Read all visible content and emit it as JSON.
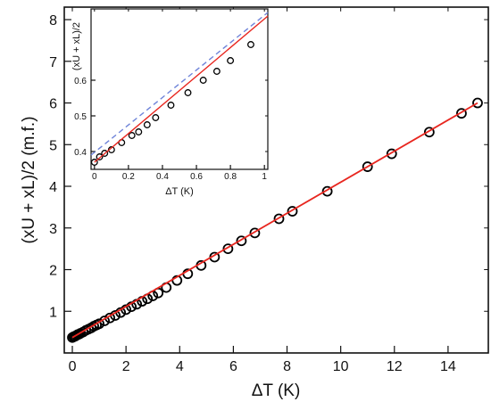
{
  "chart_data": [
    {
      "type": "scatter",
      "panel": "main",
      "xlabel": "ΔT  (K)",
      "ylabel": "(xU + xL)/2  (m.f.)",
      "xlim": [
        -0.3,
        15.5
      ],
      "ylim": [
        0,
        8.3
      ],
      "x_ticks": [
        0,
        2,
        4,
        6,
        8,
        10,
        12,
        14
      ],
      "y_ticks": [
        1,
        2,
        3,
        4,
        5,
        6,
        7,
        8
      ],
      "grid": false,
      "series": [
        {
          "marker": "open-circle",
          "color": "#000000",
          "x": [
            0.0,
            0.05,
            0.1,
            0.15,
            0.2,
            0.25,
            0.3,
            0.4,
            0.5,
            0.6,
            0.7,
            0.8,
            0.9,
            1.0,
            1.2,
            1.4,
            1.6,
            1.8,
            2.0,
            2.2,
            2.4,
            2.6,
            2.8,
            3.0,
            3.2,
            3.5,
            3.9,
            4.3,
            4.8,
            5.3,
            5.8,
            6.3,
            6.8,
            7.7,
            8.2,
            9.5,
            11.0,
            11.9,
            13.3,
            14.5,
            15.1
          ],
          "y": [
            0.37,
            0.39,
            0.4,
            0.42,
            0.44,
            0.45,
            0.47,
            0.5,
            0.54,
            0.57,
            0.6,
            0.64,
            0.67,
            0.7,
            0.77,
            0.84,
            0.9,
            0.97,
            1.04,
            1.11,
            1.17,
            1.24,
            1.3,
            1.37,
            1.44,
            1.57,
            1.74,
            1.9,
            2.1,
            2.3,
            2.5,
            2.69,
            2.88,
            3.22,
            3.4,
            3.88,
            4.47,
            4.78,
            5.3,
            5.75,
            6.0
          ]
        },
        {
          "type": "line",
          "color": "#e8261f",
          "x": [
            0.0,
            15.1
          ],
          "y": [
            0.37,
            6.0
          ]
        }
      ]
    },
    {
      "type": "scatter",
      "panel": "inset",
      "xlabel": "ΔT  (K)",
      "ylabel": "(xU + xL)/2",
      "xlim": [
        -0.02,
        1.02
      ],
      "ylim": [
        0.35,
        0.8
      ],
      "x_ticks": [
        0.0,
        0.2,
        0.4,
        0.6,
        0.8,
        1.0
      ],
      "y_ticks": [
        0.4,
        0.5,
        0.6
      ],
      "grid": false,
      "series": [
        {
          "marker": "open-circle",
          "color": "#000000",
          "x": [
            0.0,
            0.03,
            0.06,
            0.1,
            0.16,
            0.22,
            0.26,
            0.31,
            0.36,
            0.45,
            0.55,
            0.64,
            0.72,
            0.8,
            0.92
          ],
          "y": [
            0.37,
            0.385,
            0.395,
            0.405,
            0.425,
            0.445,
            0.455,
            0.475,
            0.495,
            0.53,
            0.565,
            0.6,
            0.625,
            0.655,
            0.7
          ]
        },
        {
          "type": "line",
          "color": "#e8261f",
          "x": [
            0.0,
            1.02
          ],
          "y": [
            0.37,
            0.78
          ]
        },
        {
          "type": "line",
          "color": "#6f84d9",
          "style": "dashed",
          "x": [
            -0.02,
            1.02
          ],
          "y": [
            0.39,
            0.79
          ]
        }
      ]
    }
  ]
}
